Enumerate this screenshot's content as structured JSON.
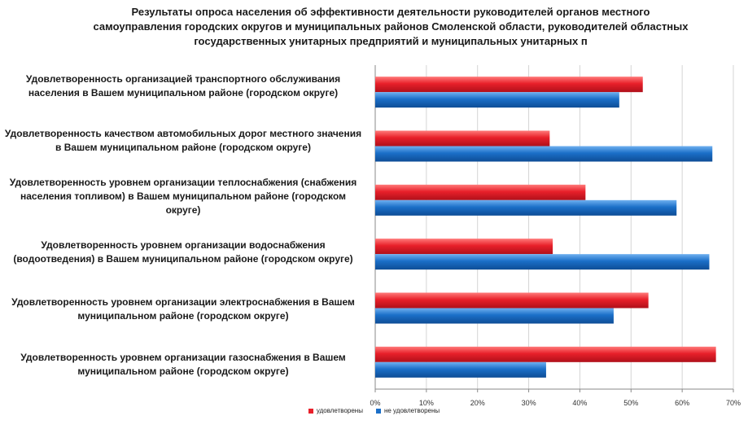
{
  "chart_data": {
    "type": "bar",
    "orientation": "horizontal",
    "title_lines": [
      "Результаты опроса населения об эффективности деятельности руководителей органов  местного",
      "самоуправления городских округов и муниципальных районов Смоленской области, руководителей областных",
      "государственных унитарных предприятий и муниципальных унитарных п"
    ],
    "categories": [
      "Удовлетворенность организацией транспортного обслуживания населения в Вашем муниципальном районе (городском округе)",
      "Удовлетворенность качеством автомобильных дорог местного значения в Вашем муниципальном районе (городском округе)",
      "Удовлетворенность уровнем организации теплоснабжения (снабжения населения топливом) в Вашем муниципальном районе (городском округе)",
      "Удовлетворенность уровнем организации водоснабжения (водоотведения) в Вашем муниципальном районе (городском округе)",
      "Удовлетворенность уровнем организации электроснабжения в Вашем муниципальном районе (городском округе)",
      "Удовлетворенность уровнем организации газоснабжения в Вашем муниципальном районе (городском округе)"
    ],
    "series": [
      {
        "name": "удовлетворены",
        "color": "#e8202a",
        "values": [
          52.3,
          34.1,
          41.1,
          34.7,
          53.4,
          66.6
        ]
      },
      {
        "name": "не удовлетворены",
        "color": "#1b6fc8",
        "values": [
          47.7,
          65.9,
          58.9,
          65.3,
          46.6,
          33.4
        ]
      }
    ],
    "xaxis": {
      "ticks": [
        0,
        10,
        20,
        30,
        40,
        50,
        60,
        70
      ],
      "tick_labels": [
        "0%",
        "10%",
        "20%",
        "30%",
        "40%",
        "50%",
        "60%",
        "70%"
      ],
      "range": [
        0,
        70
      ]
    },
    "grid": true,
    "legend_position": "bottom"
  }
}
